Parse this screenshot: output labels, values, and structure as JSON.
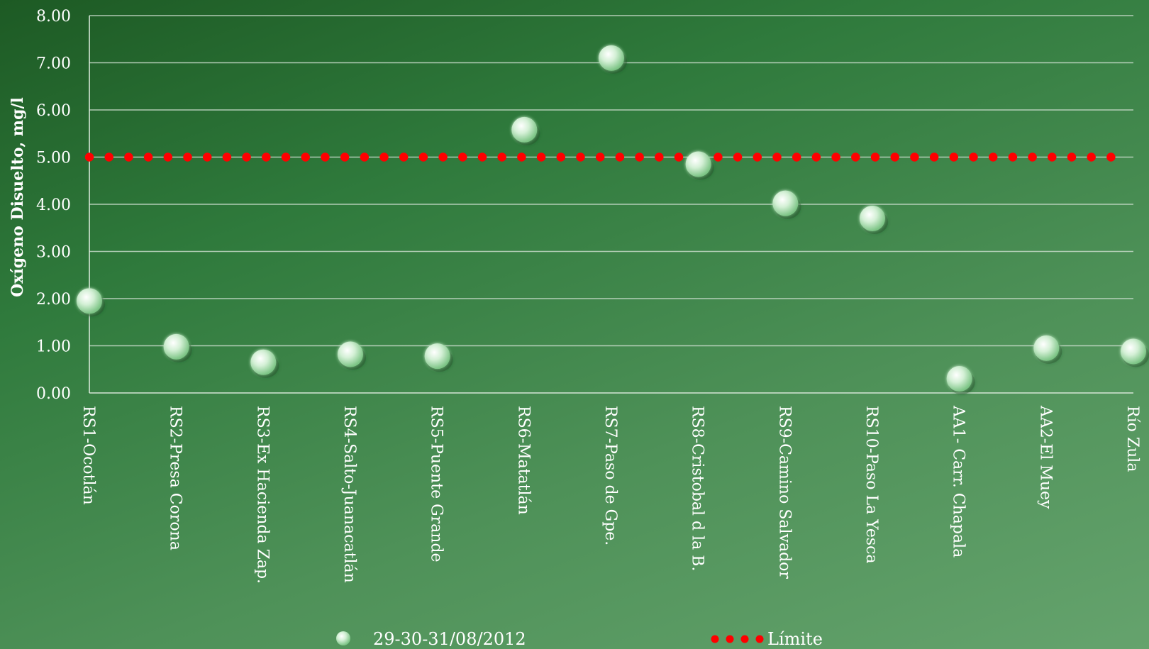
{
  "chart_data": {
    "type": "scatter",
    "title": "",
    "ylabel": "Oxígeno Disuelto, mg/l",
    "xlabel": "",
    "ylim": [
      0,
      8
    ],
    "yticks": [
      "0.00",
      "1.00",
      "2.00",
      "3.00",
      "4.00",
      "5.00",
      "6.00",
      "7.00",
      "8.00"
    ],
    "categories": [
      "RS1-Ocotlán",
      "RS2-Presa Corona",
      "RS3-Ex Hacienda Zap.",
      "RS4-Salto-Juanacatlán",
      "RS5-Puente Grande",
      "RS6-Matatlán",
      "RS7-Paso de Gpe.",
      "RS8-Cristobal d la B.",
      "RS9-Camino Salvador",
      "RS10-Paso La Yesca",
      "AA1- Carr. Chapala",
      "AA2-El Muey",
      "Río Zula"
    ],
    "series": [
      {
        "name": "29-30-31/08/2012",
        "marker": "sphere",
        "color": "#cfeed2",
        "values": [
          1.95,
          0.98,
          0.65,
          0.82,
          0.78,
          5.58,
          7.1,
          4.85,
          4.02,
          3.7,
          0.3,
          0.95,
          0.88
        ]
      },
      {
        "name": "Límite",
        "style": "dotted",
        "color": "#ff0000",
        "value": 5.0
      }
    ],
    "grid": true,
    "legend": "bottom"
  }
}
